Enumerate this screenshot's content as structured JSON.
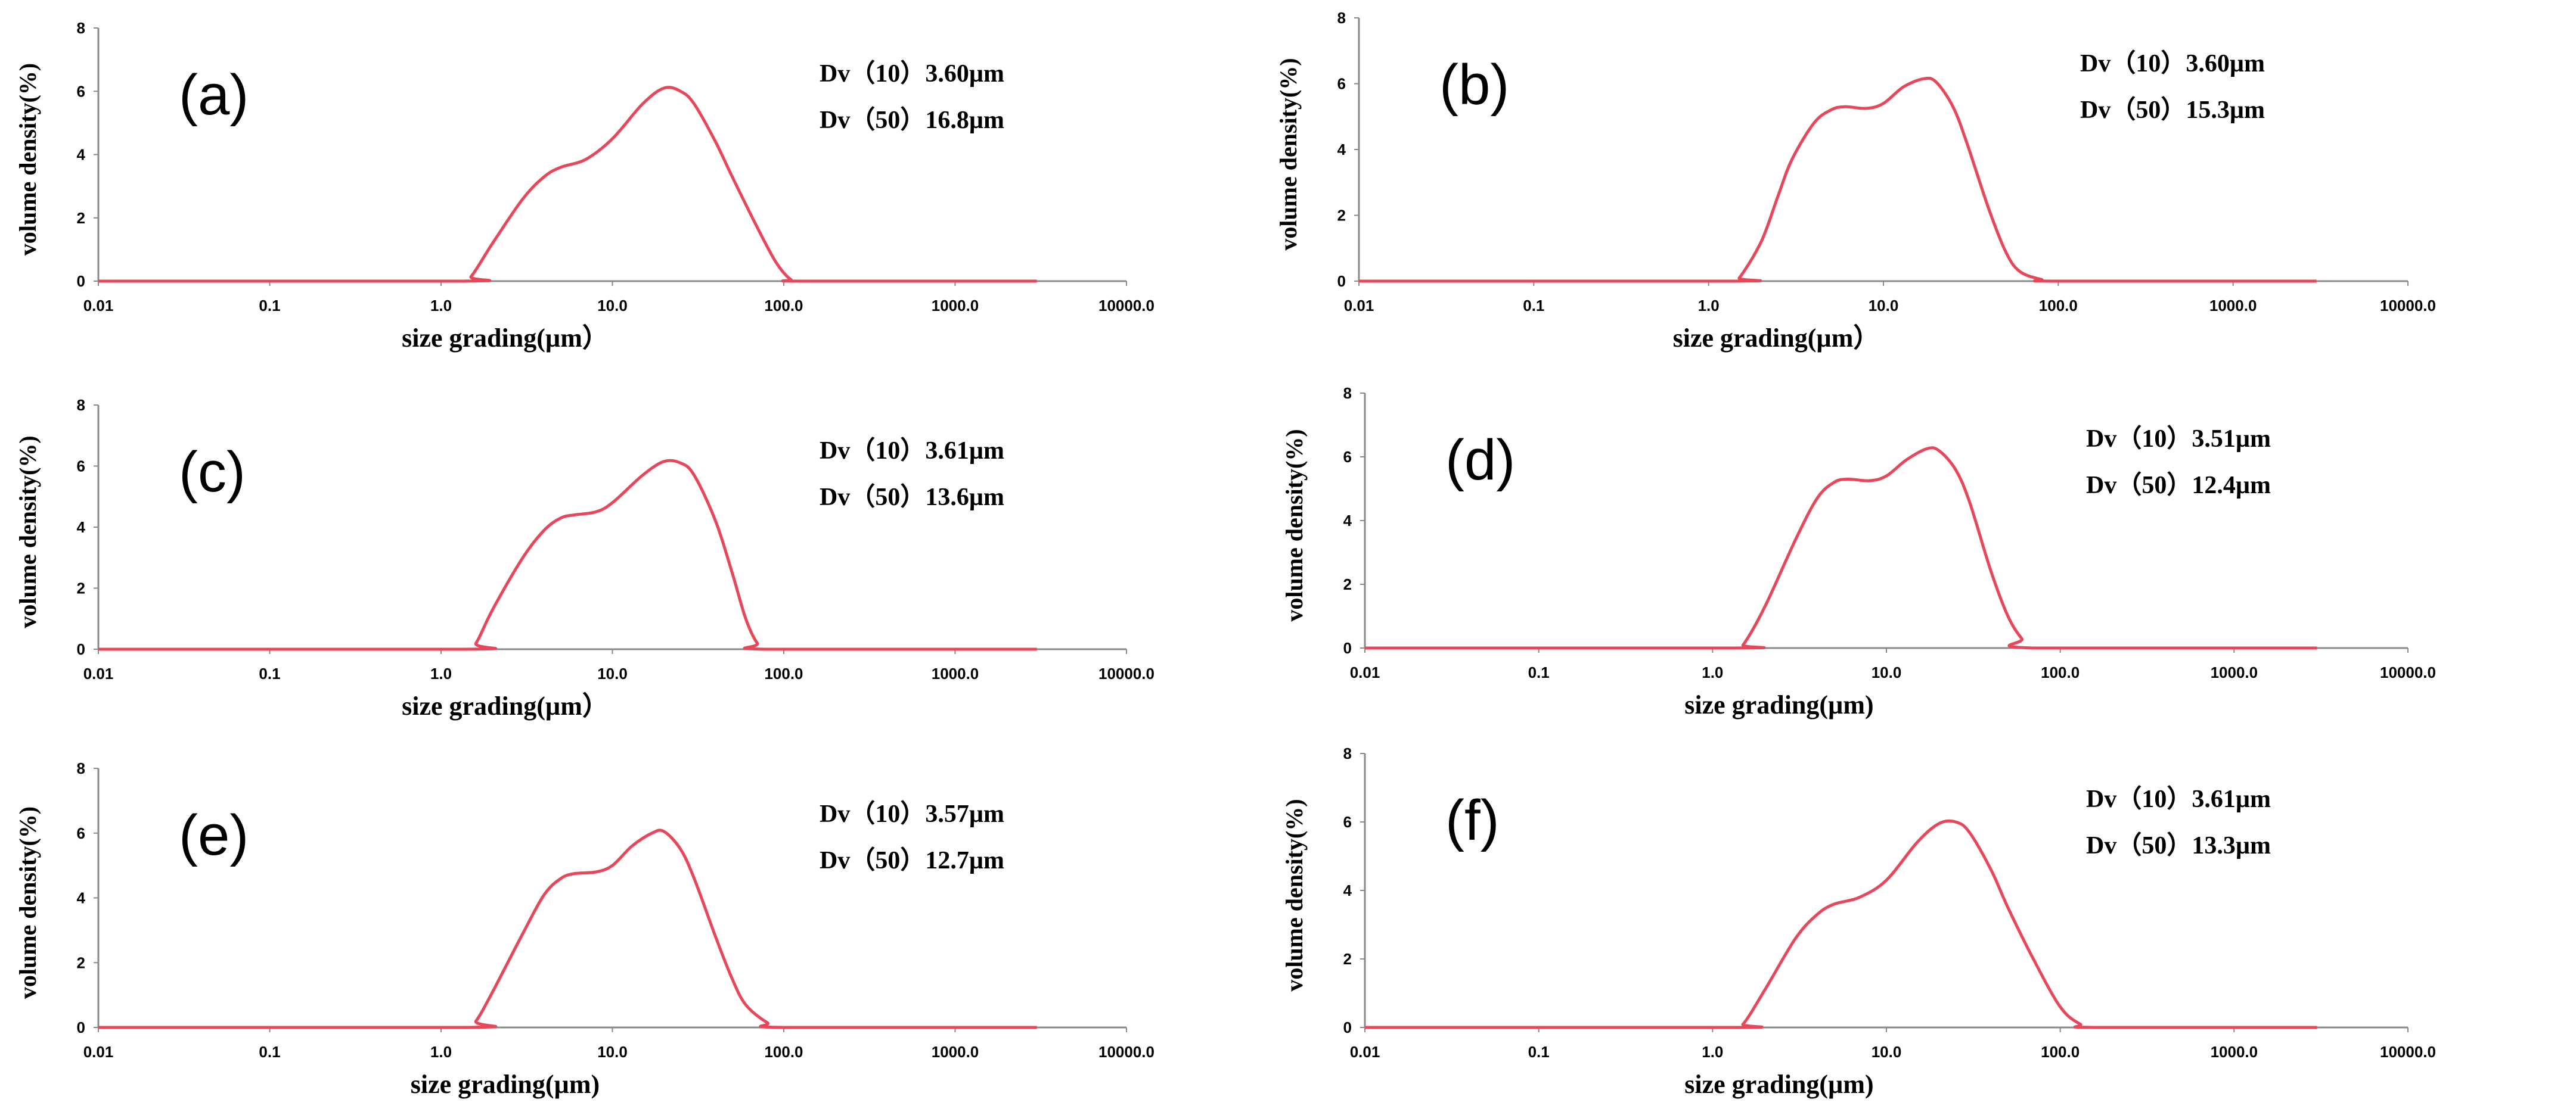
{
  "chart_data": [
    {
      "type": "line",
      "panel": "(a)",
      "xlabel": "size grading(µm）",
      "ylabel": "volume density(%)",
      "xscale": "log",
      "xlim": [
        0.01,
        10000
      ],
      "ylim": [
        0,
        8
      ],
      "xticks": [
        "0.01",
        "0.1",
        "1.0",
        "10.0",
        "100.0",
        "1000.0",
        "10000.0"
      ],
      "yticks": [
        "0",
        "2",
        "4",
        "6",
        "8"
      ],
      "annotations": [
        "Dv（10）3.60µm",
        "Dv（50）16.8µm"
      ],
      "color": "#e8475a",
      "series": [
        {
          "name": "(a)",
          "x": [
            0.01,
            1.3,
            1.5,
            2,
            3,
            4,
            5,
            7,
            10,
            15,
            20,
            25,
            30,
            40,
            50,
            70,
            90,
            110,
            130,
            3000
          ],
          "y": [
            0,
            0,
            0.15,
            1.2,
            2.6,
            3.3,
            3.6,
            3.85,
            4.5,
            5.6,
            6.1,
            6.0,
            5.6,
            4.4,
            3.3,
            1.7,
            0.6,
            0.05,
            0,
            0
          ]
        }
      ]
    },
    {
      "type": "line",
      "panel": "(b)",
      "xlabel": "size grading(µm）",
      "ylabel": "volume density(%)",
      "xscale": "log",
      "xlim": [
        0.01,
        10000
      ],
      "ylim": [
        0,
        8
      ],
      "xticks": [
        "0.01",
        "0.1",
        "1.0",
        "10.0",
        "100.0",
        "1000.0",
        "10000.0"
      ],
      "yticks": [
        "0",
        "2",
        "4",
        "6",
        "8"
      ],
      "annotations": [
        "Dv（10）3.60µm",
        "Dv（50）15.3µm"
      ],
      "color": "#e8475a",
      "series": [
        {
          "name": "(b)",
          "x": [
            0.01,
            1.35,
            1.5,
            2,
            2.5,
            3,
            4,
            5,
            6,
            8,
            10,
            13,
            17,
            20,
            25,
            30,
            40,
            50,
            60,
            80,
            100,
            3000
          ],
          "y": [
            0,
            0,
            0.1,
            1.2,
            2.6,
            3.7,
            4.8,
            5.2,
            5.3,
            5.25,
            5.4,
            5.9,
            6.15,
            6.05,
            5.3,
            4.2,
            2.2,
            0.9,
            0.3,
            0.05,
            0,
            0
          ]
        }
      ]
    },
    {
      "type": "line",
      "panel": "(c)",
      "xlabel": "size grading(µm）",
      "ylabel": "volume density(%)",
      "xscale": "log",
      "xlim": [
        0.01,
        10000
      ],
      "ylim": [
        0,
        8
      ],
      "xticks": [
        "0.01",
        "0.1",
        "1.0",
        "10.0",
        "100.0",
        "1000.0",
        "10000.0"
      ],
      "yticks": [
        "0",
        "2",
        "4",
        "6",
        "8"
      ],
      "annotations": [
        "Dv（10）3.61µm",
        "Dv（50）13.6µm"
      ],
      "color": "#e8475a",
      "series": [
        {
          "name": "(c)",
          "x": [
            0.01,
            1.4,
            1.6,
            2,
            3,
            4,
            5,
            6,
            8,
            10,
            15,
            20,
            25,
            30,
            40,
            50,
            60,
            70,
            80,
            3000
          ],
          "y": [
            0,
            0,
            0.2,
            1.3,
            3.0,
            3.9,
            4.3,
            4.4,
            4.5,
            4.8,
            5.7,
            6.15,
            6.1,
            5.7,
            4.2,
            2.5,
            1.0,
            0.2,
            0,
            0
          ]
        }
      ]
    },
    {
      "type": "line",
      "panel": "(d)",
      "xlabel": "size grading(µm)",
      "ylabel": "volume density(%)",
      "xscale": "log",
      "xlim": [
        0.01,
        10000
      ],
      "ylim": [
        0,
        8
      ],
      "xticks": [
        "0.01",
        "0.1",
        "1.0",
        "10.0",
        "100.0",
        "1000.0",
        "10000.0"
      ],
      "yticks": [
        "0",
        "2",
        "4",
        "6",
        "8"
      ],
      "annotations": [
        "Dv（10）3.51µm",
        "Dv（50）12.4µm"
      ],
      "color": "#e8475a",
      "series": [
        {
          "name": "(d)",
          "x": [
            0.01,
            1.35,
            1.5,
            2,
            3,
            4,
            5,
            6,
            8,
            10,
            13,
            17,
            20,
            25,
            30,
            40,
            50,
            60,
            70,
            3000
          ],
          "y": [
            0,
            0,
            0.1,
            1.3,
            3.4,
            4.7,
            5.2,
            5.3,
            5.25,
            5.4,
            5.9,
            6.25,
            6.2,
            5.6,
            4.6,
            2.4,
            1.0,
            0.3,
            0,
            0
          ]
        }
      ]
    },
    {
      "type": "line",
      "panel": "(e)",
      "xlabel": "size grading(µm)",
      "ylabel": "volume density(%)",
      "xscale": "log",
      "xlim": [
        0.01,
        10000
      ],
      "ylim": [
        0,
        8
      ],
      "xticks": [
        "0.01",
        "0.1",
        "1.0",
        "10.0",
        "100.0",
        "1000.0",
        "10000.0"
      ],
      "yticks": [
        "0",
        "2",
        "4",
        "6",
        "8"
      ],
      "annotations": [
        "Dv（10）3.57µm",
        "Dv（50）12.7µm"
      ],
      "color": "#e8475a",
      "series": [
        {
          "name": "(e)",
          "x": [
            0.01,
            1.4,
            1.6,
            2,
            3,
            4,
            5,
            6,
            8,
            10,
            13,
            17,
            20,
            25,
            30,
            40,
            50,
            60,
            80,
            100,
            3000
          ],
          "y": [
            0,
            0,
            0.2,
            1.1,
            2.9,
            4.1,
            4.6,
            4.75,
            4.8,
            5.0,
            5.6,
            6.0,
            6.05,
            5.5,
            4.6,
            2.8,
            1.5,
            0.7,
            0.15,
            0,
            0
          ]
        }
      ]
    },
    {
      "type": "line",
      "panel": "(f)",
      "xlabel": "size grading(µm)",
      "ylabel": "volume density(%)",
      "xscale": "log",
      "xlim": [
        0.01,
        10000
      ],
      "ylim": [
        0,
        8
      ],
      "xticks": [
        "0.01",
        "0.1",
        "1.0",
        "10.0",
        "100.0",
        "1000.0",
        "10000.0"
      ],
      "yticks": [
        "0",
        "2",
        "4",
        "6",
        "8"
      ],
      "annotations": [
        "Dv（10）3.61µm",
        "Dv（50）13.3µm"
      ],
      "color": "#e8475a",
      "series": [
        {
          "name": "(f)",
          "x": [
            0.01,
            1.3,
            1.5,
            2,
            3,
            4,
            5,
            7,
            10,
            15,
            20,
            25,
            30,
            40,
            50,
            70,
            100,
            130,
            160,
            3000
          ],
          "y": [
            0,
            0,
            0.1,
            1.1,
            2.6,
            3.3,
            3.6,
            3.8,
            4.3,
            5.4,
            5.95,
            6.0,
            5.7,
            4.6,
            3.5,
            2.0,
            0.6,
            0.1,
            0,
            0
          ]
        }
      ]
    }
  ]
}
